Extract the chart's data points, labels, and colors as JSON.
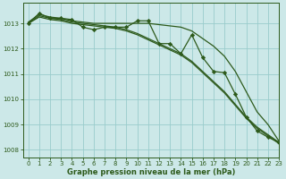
{
  "bg_color": "#cce8e8",
  "grid_color": "#99cccc",
  "line_color": "#2d5a1b",
  "tick_color": "#2d5a1b",
  "xlabel": "Graphe pression niveau de la mer (hPa)",
  "xlabel_color": "#2d5a1b",
  "ylim": [
    1007.7,
    1013.8
  ],
  "xlim": [
    -0.5,
    23
  ],
  "yticks": [
    1008,
    1009,
    1010,
    1011,
    1012,
    1013
  ],
  "xticks": [
    0,
    1,
    2,
    3,
    4,
    5,
    6,
    7,
    8,
    9,
    10,
    11,
    12,
    13,
    14,
    15,
    16,
    17,
    18,
    19,
    20,
    21,
    22,
    23
  ],
  "smooth1": [
    1013.05,
    1013.35,
    1013.25,
    1013.2,
    1013.1,
    1013.05,
    1013.0,
    1013.0,
    1013.0,
    1013.0,
    1013.0,
    1013.0,
    1012.95,
    1012.9,
    1012.85,
    1012.7,
    1012.4,
    1012.1,
    1011.7,
    1011.1,
    1010.3,
    1009.5,
    1009.0,
    1008.35
  ],
  "smooth2": [
    1013.0,
    1013.3,
    1013.2,
    1013.15,
    1013.05,
    1013.0,
    1012.95,
    1012.9,
    1012.85,
    1012.75,
    1012.6,
    1012.4,
    1012.2,
    1012.0,
    1011.8,
    1011.5,
    1011.1,
    1010.7,
    1010.3,
    1009.8,
    1009.3,
    1008.9,
    1008.6,
    1008.3
  ],
  "smooth3": [
    1013.0,
    1013.25,
    1013.15,
    1013.1,
    1013.0,
    1012.95,
    1012.9,
    1012.85,
    1012.8,
    1012.7,
    1012.55,
    1012.35,
    1012.15,
    1011.95,
    1011.75,
    1011.45,
    1011.05,
    1010.65,
    1010.25,
    1009.75,
    1009.25,
    1008.85,
    1008.55,
    1008.25
  ],
  "wiggly": [
    1013.0,
    1013.4,
    1013.2,
    1013.2,
    1013.15,
    1012.85,
    1012.75,
    1012.85,
    1012.85,
    1012.85,
    1013.1,
    1013.1,
    1012.2,
    1012.2,
    1011.8,
    1012.55,
    1011.65,
    1011.1,
    1011.05,
    1010.2,
    1009.3,
    1008.75,
    1008.5,
    1008.3
  ]
}
